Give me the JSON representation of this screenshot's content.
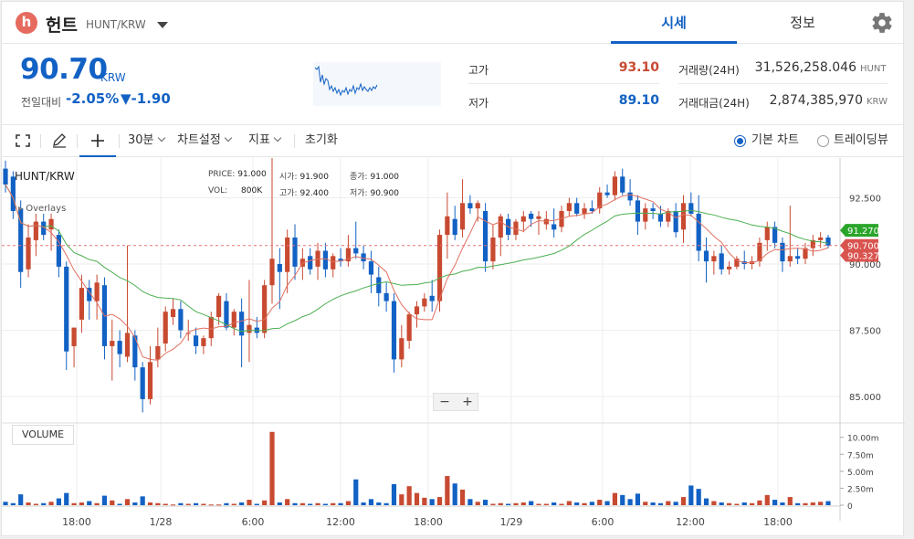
{
  "header": {
    "logo_letter": "h",
    "coin_name": "헌트",
    "coin_pair": "HUNT/KRW",
    "tabs": [
      {
        "label": "시세",
        "active": true
      },
      {
        "label": "정보",
        "active": false
      }
    ],
    "settings_icon": "gear-icon"
  },
  "ticker": {
    "price": "90.70",
    "unit": "KRW",
    "change_label": "전일대비",
    "change_rate": "-2.05%",
    "change_amount": "▼-1.90",
    "high_label": "고가",
    "high_value": "93.10",
    "low_label": "저가",
    "low_value": "89.10",
    "volume_label": "거래량(24H)",
    "volume_value": "31,526,258.046",
    "volume_unit": "HUNT",
    "trade_label": "거래대금(24H)",
    "trade_value": "2,874,385,970",
    "trade_unit": "KRW",
    "colors": {
      "down": "#1261c4",
      "up": "#c84a31"
    }
  },
  "toolbar": {
    "interval": "30분",
    "chart_settings": "차트설정",
    "indicators": "지표",
    "reset": "초기화",
    "basic_chart": "기본 차트",
    "tradingview": "트레이딩뷰",
    "icons": [
      "fullscreen-icon",
      "pencil-icon",
      "crosshair-icon"
    ]
  },
  "legend": {
    "pair": "HUNT/KRW",
    "overlays": "Overlays",
    "price_label": "PRICE:",
    "price_value": "91.000",
    "vol_label": "VOL:",
    "vol_value": "800K",
    "open_label": "시가:",
    "open_value": "91.900",
    "high_label": "고가:",
    "high_value": "92.400",
    "close_label": "종가:",
    "close_value": "91.000",
    "low_label": "저가:",
    "low_value": "90.900",
    "volume_panel": "VOLUME"
  },
  "chart_data": {
    "type": "candlestick",
    "y_ticks": [
      "92.500",
      "90.000",
      "87.500",
      "85.000"
    ],
    "y_range": [
      84.0,
      94.0
    ],
    "volume_ticks": [
      "10.00m",
      "7.50m",
      "5.00m",
      "2.50m",
      "0"
    ],
    "volume_range": [
      0,
      10.5
    ],
    "x_ticks": [
      "18:00",
      "1/28",
      "6:00",
      "12:00",
      "18:00",
      "1/29",
      "6:00",
      "12:00",
      "18:00"
    ],
    "current_price_label": "90.700",
    "ma_labels": [
      {
        "value": "91.270",
        "color": "#2aa52a"
      },
      {
        "value": "90.327",
        "color": "#d9534f"
      }
    ],
    "candles": [
      {
        "o": 93.6,
        "h": 93.9,
        "l": 92.7,
        "c": 93.0
      },
      {
        "o": 93.3,
        "h": 93.5,
        "l": 91.7,
        "c": 92.0
      },
      {
        "o": 92.1,
        "h": 92.4,
        "l": 89.1,
        "c": 89.7
      },
      {
        "o": 89.8,
        "h": 91.5,
        "l": 89.5,
        "c": 91.0
      },
      {
        "o": 90.9,
        "h": 91.9,
        "l": 90.3,
        "c": 91.6
      },
      {
        "o": 91.6,
        "h": 91.9,
        "l": 90.9,
        "c": 91.1
      },
      {
        "o": 91.3,
        "h": 91.9,
        "l": 90.5,
        "c": 91.7
      },
      {
        "o": 91.1,
        "h": 91.3,
        "l": 89.5,
        "c": 89.9
      },
      {
        "o": 89.9,
        "h": 90.1,
        "l": 86.0,
        "c": 86.7
      },
      {
        "o": 86.9,
        "h": 87.6,
        "l": 86.1,
        "c": 87.6
      },
      {
        "o": 87.9,
        "h": 89.6,
        "l": 87.4,
        "c": 89.1
      },
      {
        "o": 89.1,
        "h": 89.4,
        "l": 87.9,
        "c": 88.6
      },
      {
        "o": 88.6,
        "h": 89.6,
        "l": 87.9,
        "c": 89.3
      },
      {
        "o": 89.2,
        "h": 89.5,
        "l": 86.4,
        "c": 86.9
      },
      {
        "o": 86.9,
        "h": 87.9,
        "l": 85.6,
        "c": 87.1
      },
      {
        "o": 87.1,
        "h": 87.5,
        "l": 86.1,
        "c": 86.6
      },
      {
        "o": 86.5,
        "h": 90.7,
        "l": 86.3,
        "c": 87.4
      },
      {
        "o": 87.3,
        "h": 87.5,
        "l": 85.6,
        "c": 86.1
      },
      {
        "o": 86.1,
        "h": 86.3,
        "l": 84.4,
        "c": 84.9
      },
      {
        "o": 84.9,
        "h": 86.9,
        "l": 84.7,
        "c": 86.3
      },
      {
        "o": 86.4,
        "h": 87.6,
        "l": 86.1,
        "c": 86.9
      },
      {
        "o": 87.0,
        "h": 88.4,
        "l": 86.7,
        "c": 88.2
      },
      {
        "o": 88.0,
        "h": 88.7,
        "l": 87.7,
        "c": 88.3
      },
      {
        "o": 88.3,
        "h": 88.6,
        "l": 87.2,
        "c": 87.5
      },
      {
        "o": 87.4,
        "h": 87.9,
        "l": 87.1,
        "c": 87.4
      },
      {
        "o": 87.3,
        "h": 87.6,
        "l": 86.6,
        "c": 86.9
      },
      {
        "o": 86.9,
        "h": 87.3,
        "l": 86.6,
        "c": 87.2
      },
      {
        "o": 87.2,
        "h": 88.2,
        "l": 86.9,
        "c": 88.0
      },
      {
        "o": 88.0,
        "h": 88.9,
        "l": 87.7,
        "c": 88.8
      },
      {
        "o": 88.6,
        "h": 88.9,
        "l": 87.5,
        "c": 87.6
      },
      {
        "o": 87.6,
        "h": 88.3,
        "l": 87.3,
        "c": 88.2
      },
      {
        "o": 88.2,
        "h": 88.7,
        "l": 86.1,
        "c": 87.3
      },
      {
        "o": 87.4,
        "h": 89.4,
        "l": 86.3,
        "c": 87.7
      },
      {
        "o": 87.6,
        "h": 88.0,
        "l": 87.2,
        "c": 87.4
      },
      {
        "o": 87.4,
        "h": 89.4,
        "l": 87.2,
        "c": 89.2
      },
      {
        "o": 89.2,
        "h": 94.6,
        "l": 88.5,
        "c": 90.2
      },
      {
        "o": 90.0,
        "h": 90.6,
        "l": 88.3,
        "c": 89.7
      },
      {
        "o": 89.7,
        "h": 91.3,
        "l": 88.9,
        "c": 91.0
      },
      {
        "o": 91.0,
        "h": 91.5,
        "l": 89.4,
        "c": 89.9
      },
      {
        "o": 89.9,
        "h": 90.6,
        "l": 89.4,
        "c": 90.2
      },
      {
        "o": 90.3,
        "h": 90.6,
        "l": 89.6,
        "c": 89.8
      },
      {
        "o": 89.9,
        "h": 90.8,
        "l": 89.4,
        "c": 90.5
      },
      {
        "o": 90.5,
        "h": 90.8,
        "l": 89.5,
        "c": 89.8
      },
      {
        "o": 89.8,
        "h": 90.4,
        "l": 89.5,
        "c": 90.3
      },
      {
        "o": 90.2,
        "h": 90.6,
        "l": 89.9,
        "c": 90.1
      },
      {
        "o": 90.1,
        "h": 91.1,
        "l": 89.9,
        "c": 90.6
      },
      {
        "o": 90.6,
        "h": 91.6,
        "l": 90.2,
        "c": 90.4
      },
      {
        "o": 90.4,
        "h": 90.7,
        "l": 89.8,
        "c": 90.1
      },
      {
        "o": 90.1,
        "h": 90.5,
        "l": 88.9,
        "c": 89.6
      },
      {
        "o": 89.5,
        "h": 89.9,
        "l": 88.4,
        "c": 88.9
      },
      {
        "o": 88.9,
        "h": 89.3,
        "l": 88.2,
        "c": 88.6
      },
      {
        "o": 88.6,
        "h": 88.9,
        "l": 85.9,
        "c": 86.4
      },
      {
        "o": 86.4,
        "h": 87.7,
        "l": 86.1,
        "c": 87.2
      },
      {
        "o": 87.1,
        "h": 88.2,
        "l": 86.8,
        "c": 88.1
      },
      {
        "o": 88.1,
        "h": 88.6,
        "l": 87.6,
        "c": 88.4
      },
      {
        "o": 88.4,
        "h": 88.9,
        "l": 88.2,
        "c": 88.7
      },
      {
        "o": 88.8,
        "h": 89.4,
        "l": 88.2,
        "c": 88.6
      },
      {
        "o": 88.6,
        "h": 91.3,
        "l": 88.2,
        "c": 91.1
      },
      {
        "o": 91.1,
        "h": 92.7,
        "l": 90.2,
        "c": 91.8
      },
      {
        "o": 91.7,
        "h": 92.2,
        "l": 90.9,
        "c": 91.1
      },
      {
        "o": 91.3,
        "h": 93.2,
        "l": 91.0,
        "c": 92.3
      },
      {
        "o": 92.3,
        "h": 92.6,
        "l": 91.9,
        "c": 92.1
      },
      {
        "o": 92.1,
        "h": 92.4,
        "l": 91.6,
        "c": 92.3
      },
      {
        "o": 92.0,
        "h": 92.3,
        "l": 89.7,
        "c": 90.1
      },
      {
        "o": 90.1,
        "h": 91.5,
        "l": 89.8,
        "c": 91.0
      },
      {
        "o": 91.0,
        "h": 91.9,
        "l": 90.3,
        "c": 91.8
      },
      {
        "o": 91.7,
        "h": 91.9,
        "l": 90.9,
        "c": 91.1
      },
      {
        "o": 91.1,
        "h": 91.7,
        "l": 90.9,
        "c": 91.6
      },
      {
        "o": 91.6,
        "h": 92.0,
        "l": 91.2,
        "c": 91.8
      },
      {
        "o": 91.9,
        "h": 92.0,
        "l": 91.4,
        "c": 91.7
      },
      {
        "o": 91.7,
        "h": 92.0,
        "l": 91.1,
        "c": 91.8
      },
      {
        "o": 91.5,
        "h": 92.0,
        "l": 91.3,
        "c": 91.7
      },
      {
        "o": 91.5,
        "h": 92.1,
        "l": 91.0,
        "c": 91.3
      },
      {
        "o": 91.4,
        "h": 92.2,
        "l": 91.2,
        "c": 92.0
      },
      {
        "o": 92.0,
        "h": 92.5,
        "l": 91.8,
        "c": 92.3
      },
      {
        "o": 92.3,
        "h": 92.5,
        "l": 91.8,
        "c": 91.9
      },
      {
        "o": 91.9,
        "h": 92.3,
        "l": 91.7,
        "c": 92.1
      },
      {
        "o": 92.1,
        "h": 92.4,
        "l": 91.9,
        "c": 92.0
      },
      {
        "o": 92.1,
        "h": 92.9,
        "l": 91.9,
        "c": 92.7
      },
      {
        "o": 92.7,
        "h": 93.0,
        "l": 92.5,
        "c": 92.6
      },
      {
        "o": 92.6,
        "h": 93.5,
        "l": 92.4,
        "c": 93.3
      },
      {
        "o": 93.3,
        "h": 93.6,
        "l": 92.6,
        "c": 92.7
      },
      {
        "o": 92.7,
        "h": 93.2,
        "l": 92.2,
        "c": 92.4
      },
      {
        "o": 92.4,
        "h": 92.6,
        "l": 91.1,
        "c": 91.6
      },
      {
        "o": 91.6,
        "h": 92.3,
        "l": 91.3,
        "c": 92.1
      },
      {
        "o": 92.1,
        "h": 92.3,
        "l": 91.7,
        "c": 92.0
      },
      {
        "o": 91.9,
        "h": 92.2,
        "l": 91.4,
        "c": 91.6
      },
      {
        "o": 91.6,
        "h": 92.1,
        "l": 91.4,
        "c": 92.0
      },
      {
        "o": 92.0,
        "h": 92.3,
        "l": 91.0,
        "c": 91.2
      },
      {
        "o": 91.3,
        "h": 92.6,
        "l": 90.8,
        "c": 92.3
      },
      {
        "o": 92.3,
        "h": 92.7,
        "l": 91.8,
        "c": 91.9
      },
      {
        "o": 91.9,
        "h": 92.6,
        "l": 90.1,
        "c": 90.5
      },
      {
        "o": 90.5,
        "h": 91.0,
        "l": 89.3,
        "c": 90.1
      },
      {
        "o": 90.1,
        "h": 90.5,
        "l": 89.6,
        "c": 90.3
      },
      {
        "o": 90.4,
        "h": 90.7,
        "l": 89.6,
        "c": 89.8
      },
      {
        "o": 89.8,
        "h": 90.1,
        "l": 89.6,
        "c": 89.9
      },
      {
        "o": 89.9,
        "h": 90.3,
        "l": 89.8,
        "c": 90.2
      },
      {
        "o": 90.1,
        "h": 90.5,
        "l": 89.8,
        "c": 90.0
      },
      {
        "o": 90.0,
        "h": 90.3,
        "l": 89.8,
        "c": 90.1
      },
      {
        "o": 90.1,
        "h": 91.0,
        "l": 89.9,
        "c": 90.8
      },
      {
        "o": 90.9,
        "h": 91.6,
        "l": 90.5,
        "c": 91.4
      },
      {
        "o": 91.4,
        "h": 91.6,
        "l": 90.6,
        "c": 90.8
      },
      {
        "o": 90.8,
        "h": 91.0,
        "l": 89.7,
        "c": 90.1
      },
      {
        "o": 90.1,
        "h": 92.2,
        "l": 89.9,
        "c": 90.3
      },
      {
        "o": 90.3,
        "h": 90.6,
        "l": 90.0,
        "c": 90.2
      },
      {
        "o": 90.2,
        "h": 90.8,
        "l": 90.0,
        "c": 90.6
      },
      {
        "o": 90.6,
        "h": 91.1,
        "l": 90.3,
        "c": 90.9
      },
      {
        "o": 90.9,
        "h": 91.2,
        "l": 90.6,
        "c": 91.0
      },
      {
        "o": 91.0,
        "h": 91.1,
        "l": 90.6,
        "c": 90.7
      }
    ],
    "volumes_m": [
      0.5,
      0.3,
      1.6,
      0.4,
      0.2,
      0.3,
      0.5,
      1.0,
      1.8,
      0.3,
      0.4,
      0.6,
      0.3,
      1.4,
      0.7,
      0.2,
      0.9,
      0.4,
      1.3,
      0.4,
      0.3,
      0.2,
      0.1,
      0.3,
      0.2,
      0.3,
      0.2,
      0.1,
      0.1,
      0.3,
      0.2,
      0.4,
      0.8,
      0.2,
      0.7,
      10.8,
      0.4,
      0.9,
      0.3,
      0.3,
      0.2,
      0.3,
      0.2,
      0.3,
      0.3,
      0.6,
      3.8,
      0.4,
      0.9,
      0.4,
      0.3,
      3.1,
      1.6,
      2.8,
      1.8,
      1.1,
      0.9,
      1.2,
      4.3,
      3.2,
      2.3,
      0.9,
      0.5,
      0.8,
      0.2,
      0.3,
      0.2,
      0.3,
      0.4,
      0.6,
      0.2,
      0.2,
      0.4,
      0.2,
      0.6,
      0.4,
      0.3,
      0.5,
      0.8,
      0.6,
      1.8,
      1.5,
      0.9,
      1.7,
      0.5,
      0.4,
      0.3,
      0.6,
      0.5,
      1.2,
      2.9,
      2.4,
      1.0,
      0.6,
      0.4,
      0.3,
      0.2,
      0.4,
      0.3,
      0.7,
      1.5,
      0.8,
      0.4,
      1.2,
      0.3,
      0.3,
      0.4,
      0.5,
      0.6,
      0.2
    ]
  },
  "mini_chart_color": "#1261c4"
}
